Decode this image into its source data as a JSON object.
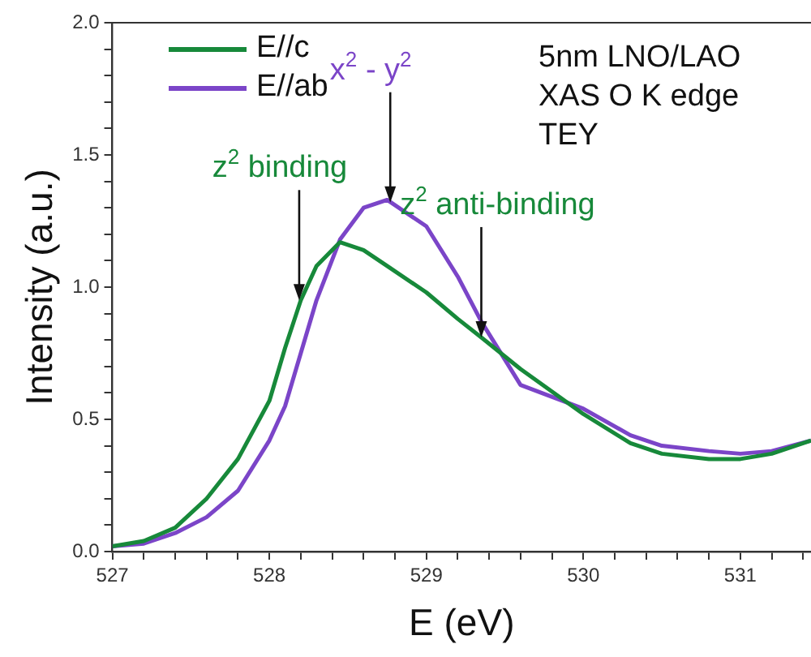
{
  "chart_data": {
    "type": "line",
    "xlabel": "E (eV)",
    "ylabel": "Intensity (a.u.)",
    "x": [
      527.0,
      527.2,
      527.4,
      527.6,
      527.8,
      528.0,
      528.1,
      528.2,
      528.3,
      528.45,
      528.6,
      528.75,
      529.0,
      529.2,
      529.35,
      529.6,
      530.0,
      530.3,
      530.5,
      530.8,
      531.0,
      531.2,
      531.45
    ],
    "series": [
      {
        "name": "E//c",
        "color": "#17893a",
        "values": [
          0.02,
          0.04,
          0.09,
          0.2,
          0.35,
          0.57,
          0.77,
          0.95,
          1.08,
          1.17,
          1.14,
          1.08,
          0.98,
          0.88,
          0.81,
          0.69,
          0.52,
          0.41,
          0.37,
          0.35,
          0.35,
          0.37,
          0.42
        ]
      },
      {
        "name": "E//ab",
        "color": "#7b45c8",
        "values": [
          0.02,
          0.03,
          0.07,
          0.13,
          0.23,
          0.42,
          0.55,
          0.75,
          0.95,
          1.18,
          1.3,
          1.33,
          1.23,
          1.04,
          0.87,
          0.63,
          0.54,
          0.44,
          0.4,
          0.38,
          0.37,
          0.38,
          0.42
        ]
      }
    ],
    "xlim": [
      527,
      531.45
    ],
    "xticks": [
      527,
      {
        "value": 527.2,
        "label": null
      },
      {
        "value": 527.4,
        "label": null
      },
      {
        "value": 527.6,
        "label": null
      },
      {
        "value": 527.8,
        "label": null
      },
      528,
      {
        "value": 528.2,
        "label": null
      },
      {
        "value": 528.4,
        "label": null
      },
      {
        "value": 528.6,
        "label": null
      },
      {
        "value": 528.8,
        "label": null
      },
      529,
      {
        "value": 529.2,
        "label": null
      },
      {
        "value": 529.4,
        "label": null
      },
      {
        "value": 529.6,
        "label": null
      },
      {
        "value": 529.8,
        "label": null
      },
      530,
      {
        "value": 530.2,
        "label": null
      },
      {
        "value": 530.4,
        "label": null
      },
      {
        "value": 530.6,
        "label": null
      },
      {
        "value": 530.8,
        "label": null
      },
      531,
      {
        "value": 531.2,
        "label": null
      },
      {
        "value": 531.4,
        "label": null
      }
    ],
    "ylim": [
      0,
      2
    ],
    "yticks": [
      {
        "value": 0,
        "label": "0.0"
      },
      {
        "value": 0.1,
        "label": null
      },
      {
        "value": 0.2,
        "label": null
      },
      {
        "value": 0.3,
        "label": null
      },
      {
        "value": 0.4,
        "label": null
      },
      {
        "value": 0.5,
        "label": "0.5"
      },
      {
        "value": 0.6,
        "label": null
      },
      {
        "value": 0.7,
        "label": null
      },
      {
        "value": 0.8,
        "label": null
      },
      {
        "value": 0.9,
        "label": null
      },
      {
        "value": 1,
        "label": "1.0"
      },
      {
        "value": 1.1,
        "label": null
      },
      {
        "value": 1.2,
        "label": null
      },
      {
        "value": 1.3,
        "label": null
      },
      {
        "value": 1.4,
        "label": null
      },
      {
        "value": 1.5,
        "label": "1.5"
      },
      {
        "value": 1.6,
        "label": null
      },
      {
        "value": 1.7,
        "label": null
      },
      {
        "value": 1.8,
        "label": null
      },
      {
        "value": 1.9,
        "label": null
      },
      {
        "value": 2,
        "label": "2.0"
      }
    ],
    "grid": false,
    "legend": "top left",
    "marker": "none",
    "line_style": "solid",
    "annotations": [
      {
        "text": "z$^{2}$ binding",
        "x": 528.19,
        "y": 0.95
      },
      {
        "text": "x$^{2}$ - y$^{2}$",
        "x": 528.77,
        "y": 1.32
      },
      {
        "text": "z$^{2}$ anti-binding",
        "x": 529.35,
        "y": 0.81
      },
      "5nm LNO/LAO",
      "XAS O K edge",
      "TEY"
    ]
  }
}
